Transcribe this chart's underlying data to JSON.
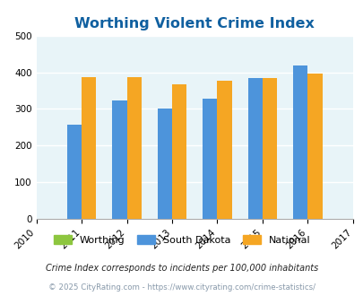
{
  "title": "Worthing Violent Crime Index",
  "years": [
    2010,
    2011,
    2012,
    2013,
    2014,
    2015,
    2016,
    2017
  ],
  "plot_years": [
    2011,
    2012,
    2013,
    2014,
    2015,
    2016
  ],
  "worthing": [
    0,
    0,
    0,
    0,
    0,
    0
  ],
  "south_dakota": [
    258,
    322,
    301,
    328,
    384,
    418
  ],
  "national": [
    387,
    387,
    367,
    377,
    383,
    397
  ],
  "bar_width": 0.32,
  "colors": {
    "worthing": "#8dc63f",
    "south_dakota": "#4d94db",
    "national": "#f5a623"
  },
  "ylim": [
    0,
    500
  ],
  "yticks": [
    0,
    100,
    200,
    300,
    400,
    500
  ],
  "bg_color": "#e8f4f8",
  "grid_color": "#ffffff",
  "title_color": "#1060a0",
  "legend_labels": [
    "Worthing",
    "South Dakota",
    "National"
  ],
  "footnote1": "Crime Index corresponds to incidents per 100,000 inhabitants",
  "footnote2": "© 2025 CityRating.com - https://www.cityrating.com/crime-statistics/",
  "tick_fontsize": 7.5,
  "title_fontsize": 11.5
}
